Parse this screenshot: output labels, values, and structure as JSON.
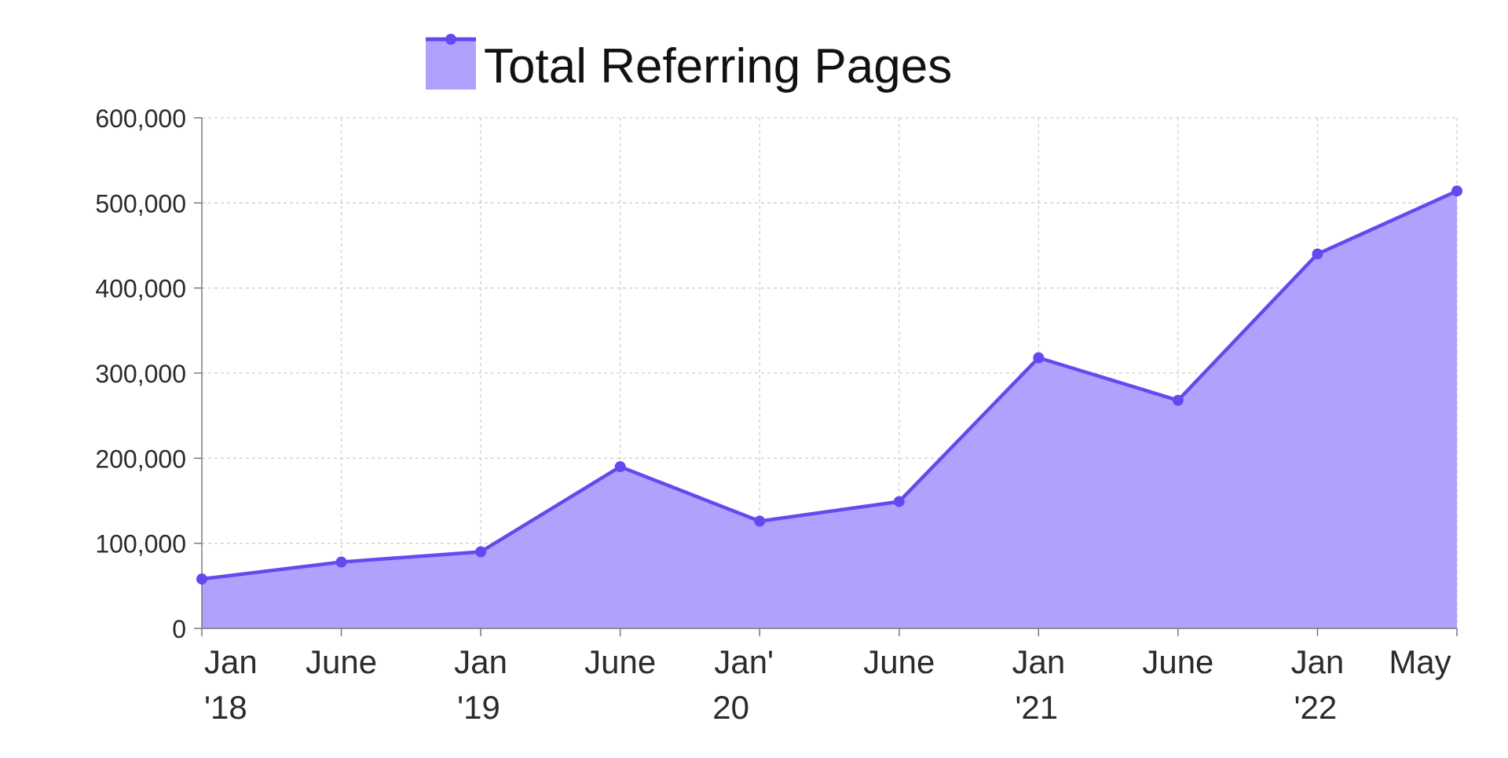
{
  "chart_data": {
    "type": "area",
    "title": "",
    "xlabel": "",
    "ylabel": "",
    "ylim": [
      0,
      600000
    ],
    "grid": true,
    "legend_position": "top-center",
    "y_ticks": [
      "600,000",
      "500,000",
      "400,000",
      "300,000",
      "200,000",
      "100,000",
      "0"
    ],
    "y_tick_values": [
      600000,
      500000,
      400000,
      300000,
      200000,
      100000,
      0
    ],
    "categories": [
      {
        "line1": "Jan",
        "line2": "'18"
      },
      {
        "line1": "June",
        "line2": ""
      },
      {
        "line1": "Jan",
        "line2": "'19"
      },
      {
        "line1": "June",
        "line2": ""
      },
      {
        "line1": "Jan'",
        "line2": "20"
      },
      {
        "line1": "June",
        "line2": ""
      },
      {
        "line1": "Jan",
        "line2": "'21"
      },
      {
        "line1": "June",
        "line2": ""
      },
      {
        "line1": "Jan",
        "line2": "'22"
      },
      {
        "line1": "May",
        "line2": ""
      }
    ],
    "series": [
      {
        "name": "Total Referring Pages",
        "values": [
          58000,
          78000,
          90000,
          190000,
          126000,
          149000,
          318000,
          268000,
          440000,
          514000
        ]
      }
    ],
    "colors": {
      "line": "#6549f0",
      "fill": "#b1a1fd",
      "grid": "#cfcfcf",
      "axis": "#7a7a7a"
    }
  }
}
